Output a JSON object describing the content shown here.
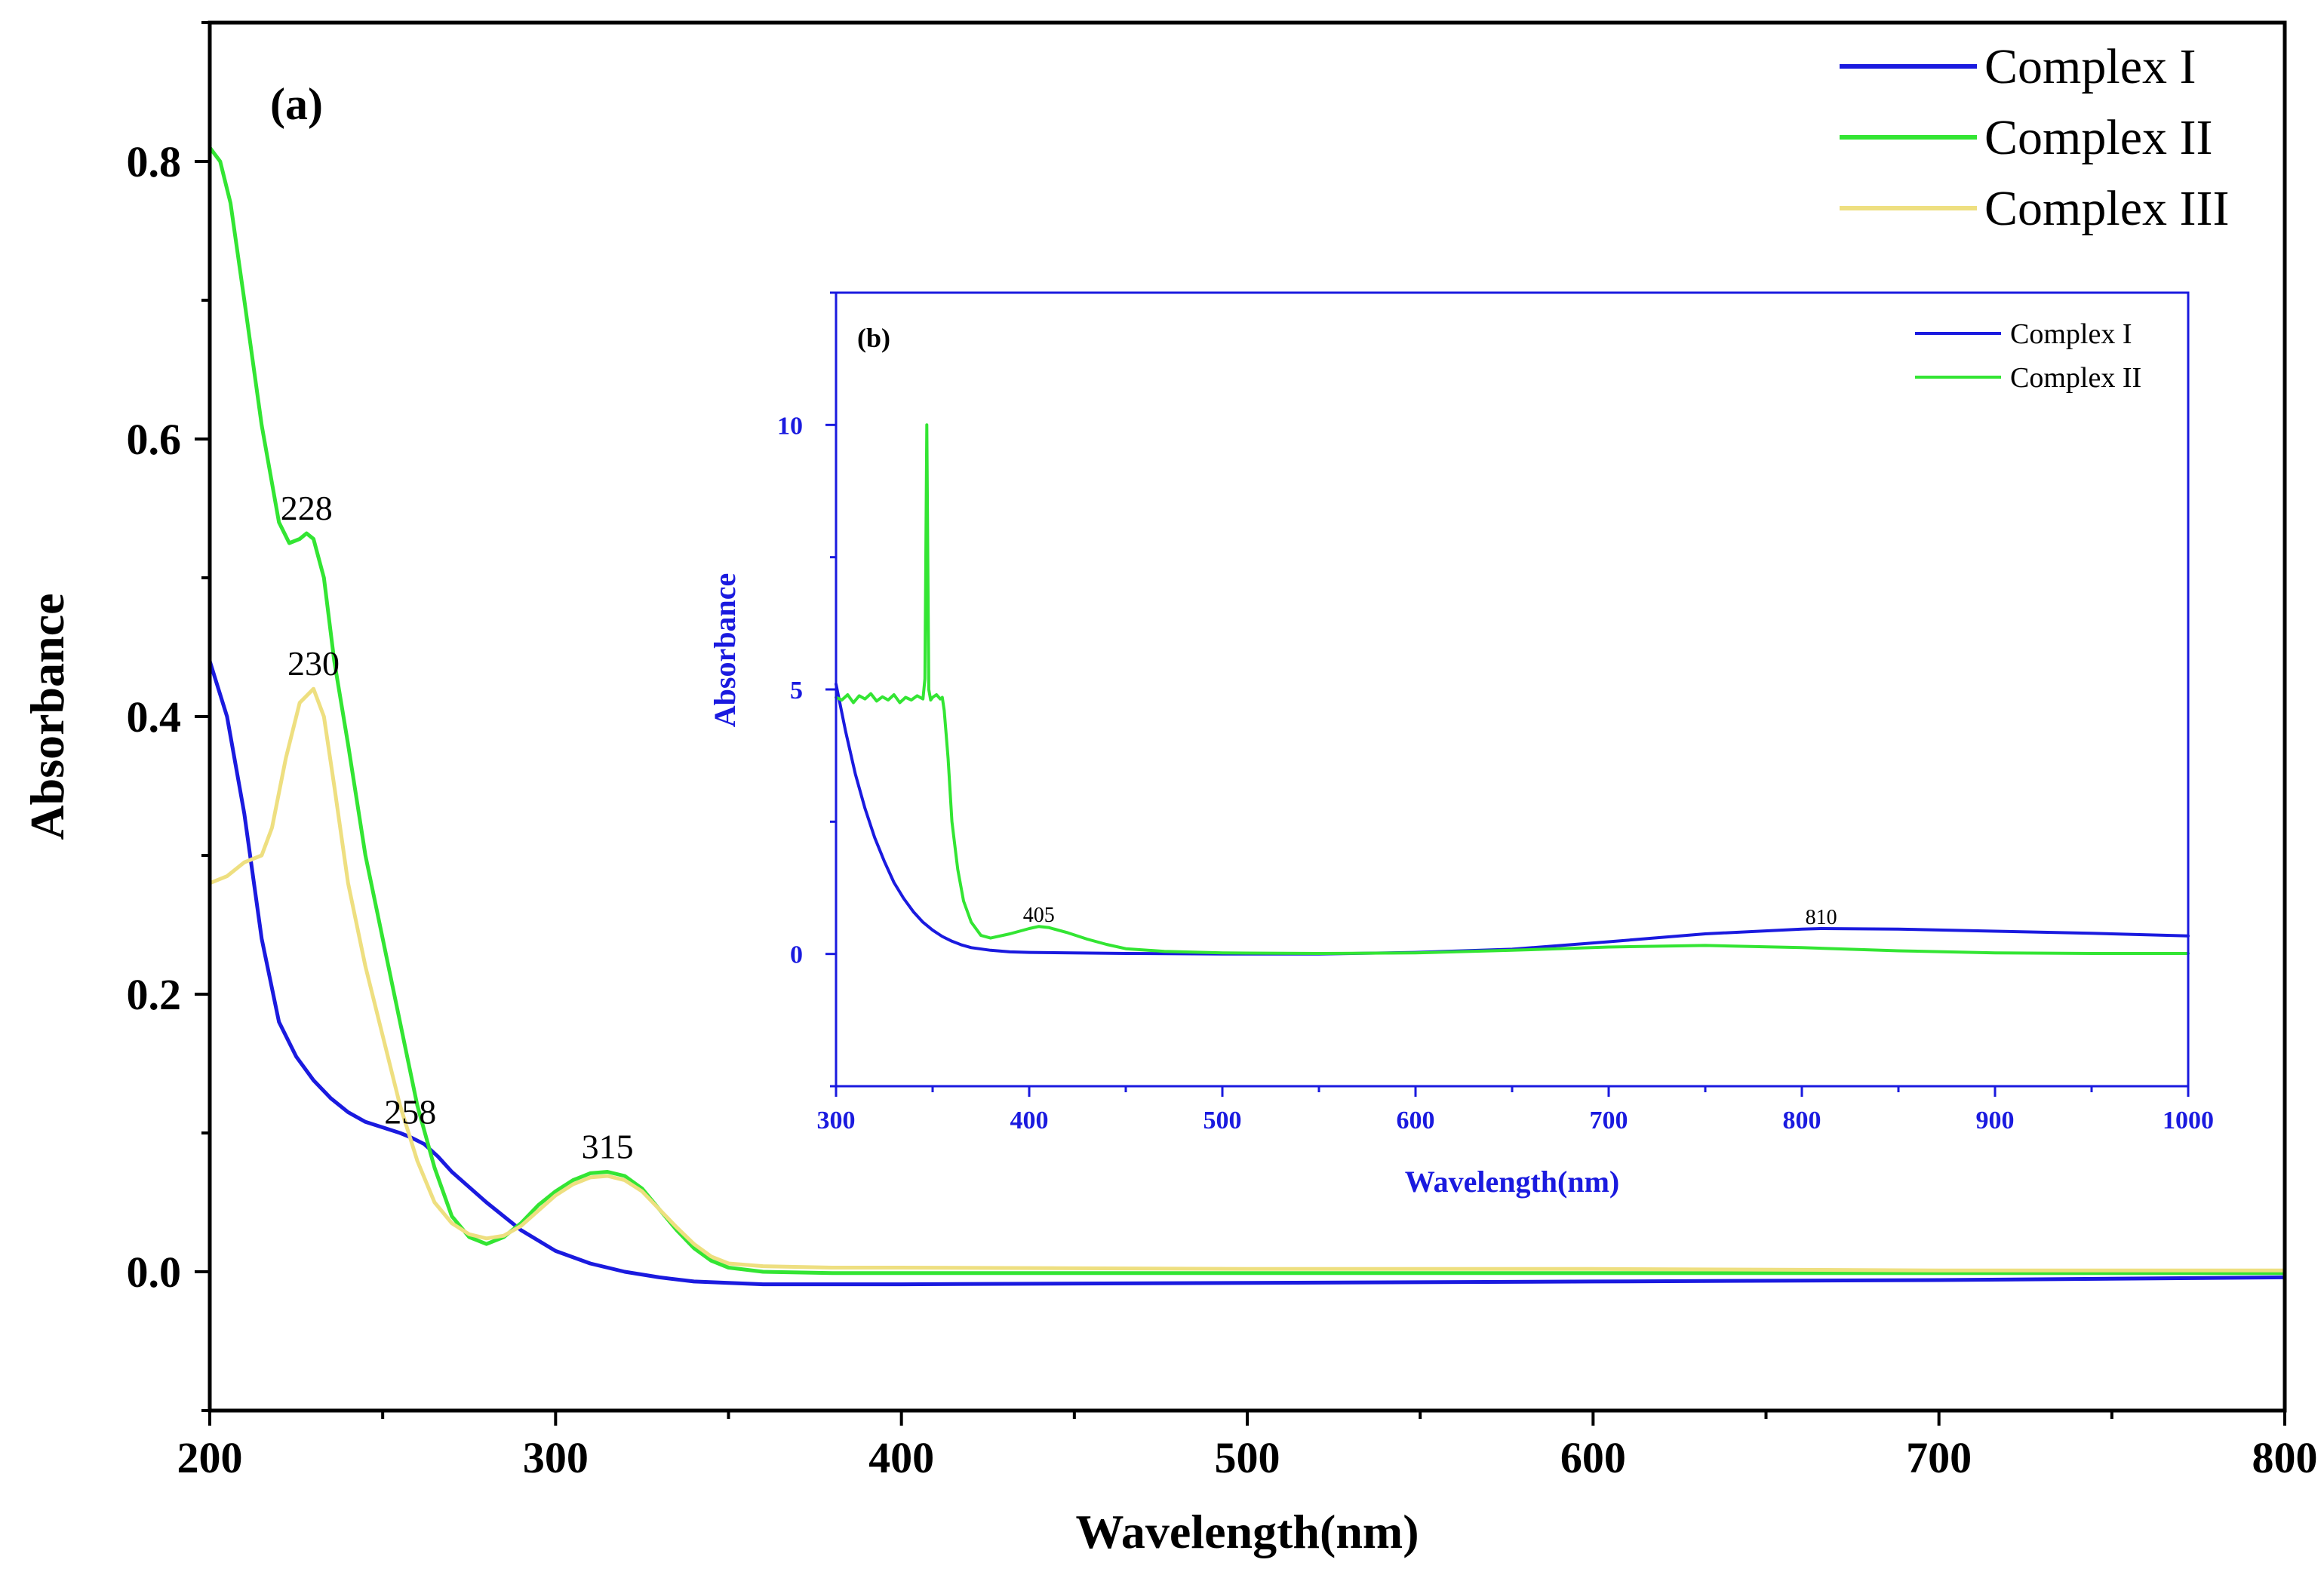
{
  "colors": {
    "complex_i": "#1a1adf",
    "complex_ii": "#33e533",
    "complex_iii": "#eedf80",
    "inset_axis": "#1a1adf",
    "main_axis": "#000000"
  },
  "chart_data": [
    {
      "id": "main",
      "type": "line",
      "panel_label": "(a)",
      "title": "",
      "xlabel": "Wavelength(nm)",
      "ylabel": "Absorbance",
      "xlim": [
        200,
        800
      ],
      "ylim": [
        -0.1,
        0.9
      ],
      "xticks": [
        200,
        300,
        400,
        500,
        600,
        700,
        800
      ],
      "xtick_labels": [
        "200",
        "300",
        "400",
        "500",
        "600",
        "700",
        "800"
      ],
      "yticks": [
        0.0,
        0.2,
        0.4,
        0.6,
        0.8
      ],
      "ytick_labels": [
        "0.0",
        "0.2",
        "0.4",
        "0.6",
        "0.8"
      ],
      "grid": false,
      "legend_position": "top-right",
      "series": [
        {
          "name": "Complex I",
          "color_key": "complex_i",
          "x": [
            200,
            205,
            210,
            215,
            220,
            225,
            230,
            235,
            240,
            245,
            250,
            255,
            258,
            262,
            266,
            270,
            280,
            290,
            300,
            310,
            320,
            330,
            340,
            350,
            360,
            400,
            500,
            600,
            700,
            800
          ],
          "y": [
            0.44,
            0.4,
            0.33,
            0.24,
            0.18,
            0.155,
            0.138,
            0.125,
            0.115,
            0.108,
            0.104,
            0.1,
            0.097,
            0.092,
            0.083,
            0.072,
            0.05,
            0.03,
            0.015,
            0.006,
            0.0,
            -0.004,
            -0.007,
            -0.008,
            -0.009,
            -0.009,
            -0.008,
            -0.007,
            -0.006,
            -0.004
          ]
        },
        {
          "name": "Complex II",
          "color_key": "complex_ii",
          "x": [
            200,
            203,
            206,
            210,
            215,
            220,
            223,
            226,
            228,
            230,
            233,
            236,
            240,
            245,
            250,
            255,
            260,
            265,
            270,
            275,
            280,
            285,
            290,
            295,
            300,
            305,
            310,
            315,
            320,
            325,
            330,
            335,
            340,
            345,
            350,
            360,
            380,
            400,
            500,
            600,
            700,
            800
          ],
          "y": [
            0.81,
            0.8,
            0.77,
            0.7,
            0.61,
            0.54,
            0.525,
            0.528,
            0.532,
            0.528,
            0.5,
            0.44,
            0.38,
            0.3,
            0.24,
            0.18,
            0.12,
            0.075,
            0.04,
            0.025,
            0.02,
            0.025,
            0.035,
            0.048,
            0.058,
            0.066,
            0.071,
            0.072,
            0.069,
            0.06,
            0.045,
            0.03,
            0.017,
            0.008,
            0.003,
            0.0,
            -0.001,
            -0.001,
            -0.001,
            -0.001,
            -0.001,
            -0.001
          ]
        },
        {
          "name": "Complex III",
          "color_key": "complex_iii",
          "x": [
            200,
            205,
            210,
            215,
            218,
            222,
            226,
            230,
            233,
            236,
            240,
            245,
            250,
            255,
            260,
            265,
            270,
            275,
            280,
            285,
            290,
            295,
            300,
            305,
            310,
            315,
            320,
            325,
            330,
            335,
            340,
            345,
            350,
            360,
            380,
            400,
            500,
            600,
            700,
            800
          ],
          "y": [
            0.28,
            0.285,
            0.295,
            0.3,
            0.32,
            0.37,
            0.41,
            0.42,
            0.4,
            0.35,
            0.28,
            0.22,
            0.17,
            0.12,
            0.08,
            0.05,
            0.035,
            0.027,
            0.024,
            0.026,
            0.033,
            0.044,
            0.055,
            0.063,
            0.068,
            0.069,
            0.066,
            0.058,
            0.045,
            0.032,
            0.02,
            0.011,
            0.006,
            0.004,
            0.003,
            0.003,
            0.002,
            0.002,
            0.001,
            0.001
          ]
        }
      ],
      "annotations": [
        {
          "label": "228",
          "x": 228,
          "y": 0.532
        },
        {
          "label": "230",
          "x": 230,
          "y": 0.42
        },
        {
          "label": "258",
          "x": 258,
          "y": 0.097
        },
        {
          "label": "315",
          "x": 315,
          "y": 0.072
        }
      ]
    },
    {
      "id": "inset",
      "type": "line",
      "panel_label": "(b)",
      "title": "",
      "xlabel": "Wavelength(nm)",
      "ylabel": "Absorbance",
      "xlim": [
        300,
        1000
      ],
      "ylim": [
        -2.5,
        12.5
      ],
      "xticks": [
        300,
        400,
        500,
        600,
        700,
        800,
        900,
        1000
      ],
      "xtick_labels": [
        "300",
        "400",
        "500",
        "600",
        "700",
        "800",
        "900",
        "1000"
      ],
      "yticks": [
        0,
        5,
        10
      ],
      "ytick_labels": [
        "0",
        "5",
        "10"
      ],
      "grid": false,
      "legend_position": "top-right",
      "series": [
        {
          "name": "Complex I",
          "color_key": "complex_i",
          "x": [
            300,
            305,
            310,
            315,
            320,
            325,
            330,
            335,
            340,
            345,
            350,
            355,
            360,
            365,
            370,
            380,
            390,
            400,
            450,
            500,
            550,
            600,
            650,
            700,
            750,
            800,
            810,
            850,
            900,
            950,
            1000
          ],
          "y": [
            5.1,
            4.2,
            3.4,
            2.75,
            2.2,
            1.75,
            1.35,
            1.05,
            0.8,
            0.6,
            0.45,
            0.33,
            0.24,
            0.17,
            0.12,
            0.07,
            0.04,
            0.03,
            0.01,
            0.0,
            0.0,
            0.03,
            0.09,
            0.23,
            0.38,
            0.47,
            0.48,
            0.47,
            0.43,
            0.39,
            0.34
          ]
        },
        {
          "name": "Complex II",
          "color_key": "complex_ii",
          "x": [
            300,
            303,
            306,
            309,
            312,
            315,
            318,
            321,
            324,
            327,
            330,
            333,
            336,
            339,
            342,
            345,
            346,
            347,
            348,
            349,
            350,
            352,
            354,
            355,
            356,
            358,
            360,
            363,
            366,
            370,
            375,
            380,
            390,
            400,
            405,
            410,
            420,
            430,
            440,
            450,
            470,
            500,
            550,
            600,
            650,
            700,
            750,
            800,
            850,
            900,
            950,
            1000
          ],
          "y": [
            4.85,
            4.8,
            4.9,
            4.75,
            4.88,
            4.82,
            4.92,
            4.78,
            4.86,
            4.8,
            4.9,
            4.75,
            4.85,
            4.8,
            4.88,
            4.82,
            5.2,
            10.0,
            5.0,
            4.8,
            4.85,
            4.9,
            4.82,
            4.85,
            4.6,
            3.7,
            2.5,
            1.6,
            1.0,
            0.6,
            0.35,
            0.3,
            0.38,
            0.48,
            0.52,
            0.5,
            0.4,
            0.28,
            0.18,
            0.1,
            0.05,
            0.02,
            0.01,
            0.02,
            0.07,
            0.13,
            0.16,
            0.12,
            0.06,
            0.02,
            0.01,
            0.01
          ]
        }
      ],
      "annotations": [
        {
          "label": "405",
          "x": 405,
          "y": 0.52
        },
        {
          "label": "810",
          "x": 810,
          "y": 0.48
        }
      ]
    }
  ]
}
